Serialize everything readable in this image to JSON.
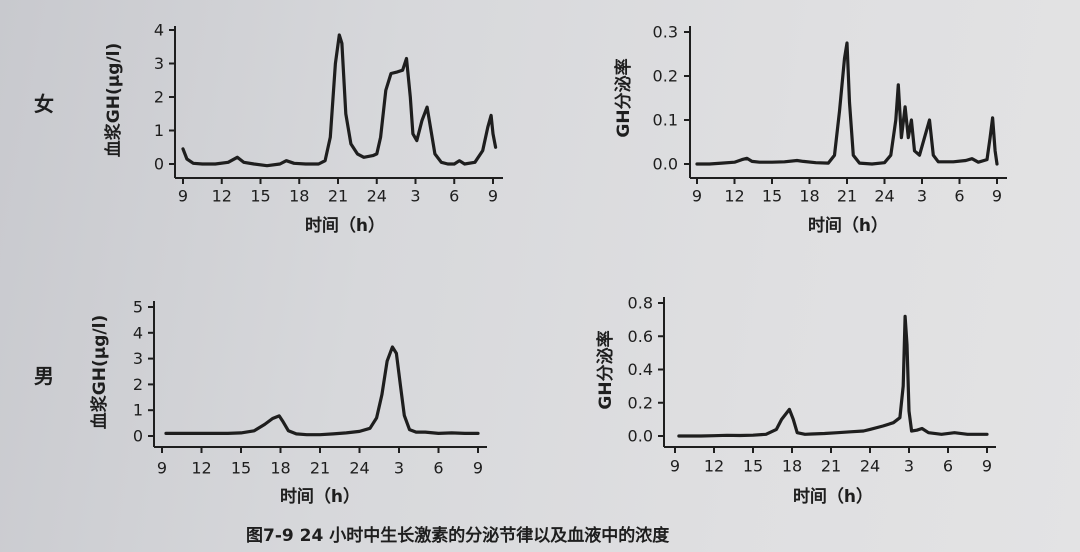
{
  "labels": {
    "female": "女",
    "male": "男"
  },
  "caption": "图7-9  24 小时中生长激素的分泌节律以及血液中的浓度",
  "colors": {
    "ink": "#1e1e1e"
  },
  "chart_data": [
    {
      "type": "line",
      "ylabel": "血浆GH(μg/l)",
      "xlabel": "时间（h）",
      "x_ticks": [
        "9",
        "12",
        "15",
        "18",
        "21",
        "24",
        "3",
        "6",
        "9"
      ],
      "y_ticks": [
        "0",
        "1",
        "2",
        "3",
        "4"
      ],
      "ylim": [
        0,
        4
      ],
      "grid": false,
      "series": [
        {
          "points": [
            [
              9.0,
              0.45
            ],
            [
              9.3,
              0.15
            ],
            [
              9.8,
              0.02
            ],
            [
              10.5,
              0.0
            ],
            [
              11.5,
              0.0
            ],
            [
              12.5,
              0.05
            ],
            [
              13.2,
              0.2
            ],
            [
              13.7,
              0.05
            ],
            [
              14.5,
              0.0
            ],
            [
              15.5,
              -0.05
            ],
            [
              16.5,
              0.0
            ],
            [
              17.0,
              0.1
            ],
            [
              17.6,
              0.02
            ],
            [
              18.5,
              0.0
            ],
            [
              19.5,
              0.0
            ],
            [
              20.0,
              0.1
            ],
            [
              20.4,
              0.8
            ],
            [
              20.8,
              3.0
            ],
            [
              21.1,
              3.85
            ],
            [
              21.3,
              3.6
            ],
            [
              21.6,
              1.5
            ],
            [
              22.0,
              0.6
            ],
            [
              22.5,
              0.3
            ],
            [
              23.0,
              0.2
            ],
            [
              23.7,
              0.25
            ],
            [
              24.0,
              0.3
            ],
            [
              0.3,
              0.8
            ],
            [
              0.7,
              2.2
            ],
            [
              1.1,
              2.7
            ],
            [
              1.6,
              2.75
            ],
            [
              2.0,
              2.8
            ],
            [
              2.3,
              3.15
            ],
            [
              2.6,
              2.0
            ],
            [
              2.8,
              0.9
            ],
            [
              3.1,
              0.7
            ],
            [
              3.5,
              1.3
            ],
            [
              3.9,
              1.7
            ],
            [
              4.2,
              1.0
            ],
            [
              4.5,
              0.3
            ],
            [
              5.0,
              0.05
            ],
            [
              5.5,
              0.0
            ],
            [
              6.0,
              0.0
            ],
            [
              6.4,
              0.1
            ],
            [
              6.8,
              0.0
            ],
            [
              7.6,
              0.05
            ],
            [
              8.2,
              0.4
            ],
            [
              8.6,
              1.1
            ],
            [
              8.85,
              1.45
            ],
            [
              9.0,
              0.9
            ],
            [
              9.2,
              0.5
            ]
          ]
        }
      ]
    },
    {
      "type": "line",
      "ylabel": "GH分泌率",
      "xlabel": "时间（h）",
      "x_ticks": [
        "9",
        "12",
        "15",
        "18",
        "21",
        "24",
        "3",
        "6",
        "9"
      ],
      "y_ticks": [
        "0.0",
        "0.1",
        "0.2",
        "0.3"
      ],
      "ylim": [
        0,
        0.3
      ],
      "grid": false,
      "series": [
        {
          "points": [
            [
              9.0,
              0.0
            ],
            [
              10.0,
              0.0
            ],
            [
              11.0,
              0.002
            ],
            [
              12.0,
              0.004
            ],
            [
              12.6,
              0.01
            ],
            [
              13.0,
              0.013
            ],
            [
              13.4,
              0.006
            ],
            [
              14.0,
              0.004
            ],
            [
              15.0,
              0.004
            ],
            [
              16.0,
              0.005
            ],
            [
              17.0,
              0.008
            ],
            [
              17.5,
              0.006
            ],
            [
              18.5,
              0.003
            ],
            [
              19.5,
              0.002
            ],
            [
              20.0,
              0.02
            ],
            [
              20.4,
              0.12
            ],
            [
              20.8,
              0.24
            ],
            [
              21.0,
              0.275
            ],
            [
              21.2,
              0.14
            ],
            [
              21.5,
              0.02
            ],
            [
              22.0,
              0.002
            ],
            [
              23.0,
              0.0
            ],
            [
              24.0,
              0.003
            ],
            [
              0.5,
              0.02
            ],
            [
              0.9,
              0.1
            ],
            [
              1.1,
              0.18
            ],
            [
              1.35,
              0.06
            ],
            [
              1.65,
              0.13
            ],
            [
              1.9,
              0.06
            ],
            [
              2.15,
              0.1
            ],
            [
              2.4,
              0.03
            ],
            [
              2.8,
              0.02
            ],
            [
              3.2,
              0.06
            ],
            [
              3.6,
              0.1
            ],
            [
              3.9,
              0.02
            ],
            [
              4.3,
              0.005
            ],
            [
              5.5,
              0.005
            ],
            [
              6.5,
              0.008
            ],
            [
              7.0,
              0.012
            ],
            [
              7.5,
              0.004
            ],
            [
              8.2,
              0.01
            ],
            [
              8.45,
              0.06
            ],
            [
              8.65,
              0.105
            ],
            [
              8.85,
              0.03
            ],
            [
              9.0,
              0.0
            ]
          ]
        }
      ]
    },
    {
      "type": "line",
      "ylabel": "血浆GH(μg/l)",
      "xlabel": "时间（h）",
      "x_ticks": [
        "9",
        "12",
        "15",
        "18",
        "21",
        "24",
        "3",
        "6",
        "9"
      ],
      "y_ticks": [
        "0",
        "1",
        "2",
        "3",
        "4",
        "5"
      ],
      "ylim": [
        0,
        5
      ],
      "grid": false,
      "series": [
        {
          "points": [
            [
              9.3,
              0.1
            ],
            [
              10.0,
              0.1
            ],
            [
              11.0,
              0.1
            ],
            [
              12.0,
              0.1
            ],
            [
              13.0,
              0.1
            ],
            [
              14.0,
              0.1
            ],
            [
              15.0,
              0.12
            ],
            [
              16.0,
              0.2
            ],
            [
              16.8,
              0.45
            ],
            [
              17.4,
              0.68
            ],
            [
              17.9,
              0.78
            ],
            [
              18.2,
              0.55
            ],
            [
              18.6,
              0.2
            ],
            [
              19.2,
              0.08
            ],
            [
              20.0,
              0.05
            ],
            [
              21.0,
              0.05
            ],
            [
              22.0,
              0.08
            ],
            [
              23.0,
              0.12
            ],
            [
              24.0,
              0.18
            ],
            [
              0.8,
              0.3
            ],
            [
              1.3,
              0.7
            ],
            [
              1.7,
              1.6
            ],
            [
              2.1,
              2.9
            ],
            [
              2.5,
              3.45
            ],
            [
              2.8,
              3.2
            ],
            [
              3.1,
              2.0
            ],
            [
              3.4,
              0.8
            ],
            [
              3.8,
              0.25
            ],
            [
              4.3,
              0.15
            ],
            [
              5.0,
              0.15
            ],
            [
              6.0,
              0.1
            ],
            [
              7.0,
              0.12
            ],
            [
              8.0,
              0.1
            ],
            [
              9.0,
              0.1
            ]
          ]
        }
      ]
    },
    {
      "type": "line",
      "ylabel": "GH分泌率",
      "xlabel": "时间（h）",
      "x_ticks": [
        "9",
        "12",
        "15",
        "18",
        "21",
        "24",
        "3",
        "6",
        "9"
      ],
      "y_ticks": [
        "0.0",
        "0.2",
        "0.4",
        "0.6",
        "0.8"
      ],
      "ylim": [
        0,
        0.8
      ],
      "grid": false,
      "series": [
        {
          "points": [
            [
              9.3,
              0.0
            ],
            [
              10.0,
              0.0
            ],
            [
              11.0,
              0.0
            ],
            [
              12.0,
              0.002
            ],
            [
              13.0,
              0.004
            ],
            [
              14.0,
              0.003
            ],
            [
              15.0,
              0.005
            ],
            [
              16.0,
              0.01
            ],
            [
              16.8,
              0.04
            ],
            [
              17.2,
              0.1
            ],
            [
              17.5,
              0.13
            ],
            [
              17.8,
              0.16
            ],
            [
              18.1,
              0.1
            ],
            [
              18.4,
              0.02
            ],
            [
              19.0,
              0.01
            ],
            [
              19.5,
              0.012
            ],
            [
              20.5,
              0.015
            ],
            [
              21.5,
              0.02
            ],
            [
              22.5,
              0.025
            ],
            [
              23.5,
              0.03
            ],
            [
              24.0,
              0.04
            ],
            [
              1.0,
              0.06
            ],
            [
              1.8,
              0.08
            ],
            [
              2.3,
              0.11
            ],
            [
              2.55,
              0.3
            ],
            [
              2.7,
              0.72
            ],
            [
              2.85,
              0.55
            ],
            [
              3.0,
              0.15
            ],
            [
              3.2,
              0.03
            ],
            [
              3.6,
              0.035
            ],
            [
              4.0,
              0.045
            ],
            [
              4.5,
              0.02
            ],
            [
              5.5,
              0.01
            ],
            [
              6.5,
              0.02
            ],
            [
              7.5,
              0.01
            ],
            [
              9.0,
              0.01
            ]
          ]
        }
      ]
    }
  ]
}
